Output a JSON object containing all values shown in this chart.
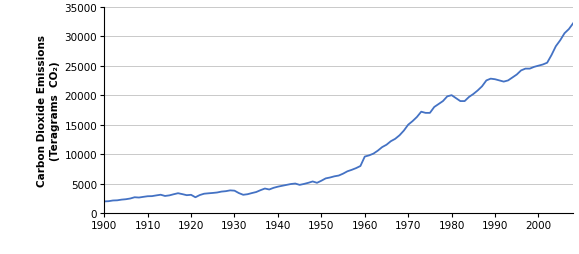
{
  "ylabel_line1": "Carbon Dioxide Emissions",
  "ylabel_line2": "(Teragrams  CO₂)",
  "xlim": [
    1900,
    2008
  ],
  "ylim": [
    0,
    35000
  ],
  "yticks": [
    0,
    5000,
    10000,
    15000,
    20000,
    25000,
    30000,
    35000
  ],
  "xticks": [
    1900,
    1910,
    1920,
    1930,
    1940,
    1950,
    1960,
    1970,
    1980,
    1990,
    2000
  ],
  "line_color": "#4472C4",
  "line_width": 1.3,
  "background_color": "#ffffff",
  "grid_color": "#c0c0c0",
  "years": [
    1900,
    1901,
    1902,
    1903,
    1904,
    1905,
    1906,
    1907,
    1908,
    1909,
    1910,
    1911,
    1912,
    1913,
    1914,
    1915,
    1916,
    1917,
    1918,
    1919,
    1920,
    1921,
    1922,
    1923,
    1924,
    1925,
    1926,
    1927,
    1928,
    1929,
    1930,
    1931,
    1932,
    1933,
    1934,
    1935,
    1936,
    1937,
    1938,
    1939,
    1940,
    1941,
    1942,
    1943,
    1944,
    1945,
    1946,
    1947,
    1948,
    1949,
    1950,
    1951,
    1952,
    1953,
    1954,
    1955,
    1956,
    1957,
    1958,
    1959,
    1960,
    1961,
    1962,
    1963,
    1964,
    1965,
    1966,
    1967,
    1968,
    1969,
    1970,
    1971,
    1972,
    1973,
    1974,
    1975,
    1976,
    1977,
    1978,
    1979,
    1980,
    1981,
    1982,
    1983,
    1984,
    1985,
    1986,
    1987,
    1988,
    1989,
    1990,
    1991,
    1992,
    1993,
    1994,
    1995,
    1996,
    1997,
    1998,
    1999,
    2000,
    2001,
    2002,
    2003,
    2004,
    2005,
    2006,
    2007,
    2008
  ],
  "emissions": [
    1998,
    2035,
    2154,
    2184,
    2300,
    2369,
    2491,
    2703,
    2655,
    2769,
    2874,
    2893,
    3018,
    3132,
    2921,
    3021,
    3213,
    3388,
    3230,
    3053,
    3115,
    2700,
    3076,
    3302,
    3371,
    3432,
    3509,
    3661,
    3733,
    3869,
    3819,
    3413,
    3120,
    3216,
    3411,
    3589,
    3905,
    4181,
    4019,
    4301,
    4497,
    4651,
    4800,
    4947,
    5027,
    4800,
    4960,
    5150,
    5380,
    5150,
    5500,
    5900,
    6050,
    6250,
    6380,
    6700,
    7100,
    7350,
    7640,
    8000,
    9600,
    9800,
    10100,
    10600,
    11200,
    11600,
    12200,
    12600,
    13200,
    14000,
    15000,
    15600,
    16300,
    17200,
    17000,
    17000,
    18000,
    18500,
    19000,
    19800,
    20000,
    19500,
    19000,
    19000,
    19700,
    20200,
    20800,
    21500,
    22500,
    22800,
    22700,
    22500,
    22300,
    22500,
    23000,
    23500,
    24200,
    24500,
    24500,
    24800,
    25000,
    25200,
    25500,
    26800,
    28300,
    29300,
    30500,
    31200,
    32200
  ]
}
